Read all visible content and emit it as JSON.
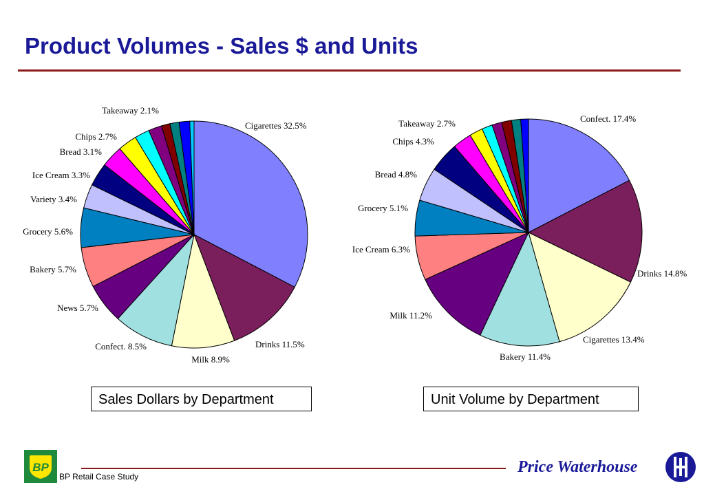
{
  "header": {
    "title": "Product Volumes - Sales $ and Units"
  },
  "captions": {
    "left": "Sales Dollars by Department",
    "right": "Unit Volume by Department"
  },
  "footer": {
    "left_text": "BP Retail Case Study",
    "brand": "Price Waterhouse",
    "logo_text": "BP"
  },
  "chart_data": [
    {
      "type": "pie",
      "title": "Sales Dollars by Department",
      "slices": [
        {
          "label": "Cigarettes",
          "value": 32.5,
          "text": "Cigarettes 32.5%",
          "color": "#8080ff"
        },
        {
          "label": "Drinks",
          "value": 11.5,
          "text": "Drinks 11.5%",
          "color": "#7a1f5c"
        },
        {
          "label": "Milk",
          "value": 8.9,
          "text": "Milk 8.9%",
          "color": "#ffffcc"
        },
        {
          "label": "Confect.",
          "value": 8.5,
          "text": "Confect. 8.5%",
          "color": "#a0e0e0"
        },
        {
          "label": "News",
          "value": 5.7,
          "text": "News 5.7%",
          "color": "#660080"
        },
        {
          "label": "Bakery",
          "value": 5.7,
          "text": "Bakery 5.7%",
          "color": "#ff8080"
        },
        {
          "label": "Grocery",
          "value": 5.6,
          "text": "Grocery 5.6%",
          "color": "#0080c0"
        },
        {
          "label": "Variety",
          "value": 3.4,
          "text": "Variety 3.4%",
          "color": "#c0c0ff"
        },
        {
          "label": "Ice Cream",
          "value": 3.3,
          "text": "Ice Cream 3.3%",
          "color": "#000080"
        },
        {
          "label": "Bread",
          "value": 3.1,
          "text": "Bread 3.1%",
          "color": "#ff00ff"
        },
        {
          "label": "Chips",
          "value": 2.7,
          "text": "Chips 2.7%",
          "color": "#ffff00"
        },
        {
          "label": "Takeaway",
          "value": 2.1,
          "text": "Takeaway 2.1%",
          "color": "#00ffff"
        },
        {
          "label": "",
          "value": 1.9,
          "text": "",
          "color": "#800080"
        },
        {
          "label": "",
          "value": 1.2,
          "text": "",
          "color": "#800000"
        },
        {
          "label": "",
          "value": 1.3,
          "text": "",
          "color": "#008080"
        },
        {
          "label": "",
          "value": 1.5,
          "text": "",
          "color": "#0000ff"
        },
        {
          "label": "",
          "value": 0.6,
          "text": "",
          "color": "#00ccff"
        }
      ]
    },
    {
      "type": "pie",
      "title": "Unit Volume by Department",
      "slices": [
        {
          "label": "Confect.",
          "value": 17.4,
          "text": "Confect. 17.4%",
          "color": "#8080ff"
        },
        {
          "label": "Drinks",
          "value": 14.8,
          "text": "Drinks 14.8%",
          "color": "#7a1f5c"
        },
        {
          "label": "Cigarettes",
          "value": 13.4,
          "text": "Cigarettes 13.4%",
          "color": "#ffffcc"
        },
        {
          "label": "Bakery",
          "value": 11.4,
          "text": "Bakery 11.4%",
          "color": "#a0e0e0"
        },
        {
          "label": "Milk",
          "value": 11.2,
          "text": "Milk 11.2%",
          "color": "#660080"
        },
        {
          "label": "Ice Cream",
          "value": 6.3,
          "text": "Ice Cream 6.3%",
          "color": "#ff8080"
        },
        {
          "label": "Grocery",
          "value": 5.1,
          "text": "Grocery 5.1%",
          "color": "#0080c0"
        },
        {
          "label": "Bread",
          "value": 4.8,
          "text": "Bread 4.8%",
          "color": "#c0c0ff"
        },
        {
          "label": "Chips",
          "value": 4.3,
          "text": "Chips 4.3%",
          "color": "#000080"
        },
        {
          "label": "Takeaway",
          "value": 2.7,
          "text": "Takeaway 2.7%",
          "color": "#ff00ff"
        },
        {
          "label": "",
          "value": 1.9,
          "text": "",
          "color": "#ffff00"
        },
        {
          "label": "",
          "value": 1.5,
          "text": "",
          "color": "#00ffff"
        },
        {
          "label": "",
          "value": 1.4,
          "text": "",
          "color": "#800080"
        },
        {
          "label": "",
          "value": 1.4,
          "text": "",
          "color": "#800000"
        },
        {
          "label": "",
          "value": 1.3,
          "text": "",
          "color": "#008080"
        },
        {
          "label": "",
          "value": 1.1,
          "text": "",
          "color": "#0000ff"
        }
      ]
    }
  ]
}
